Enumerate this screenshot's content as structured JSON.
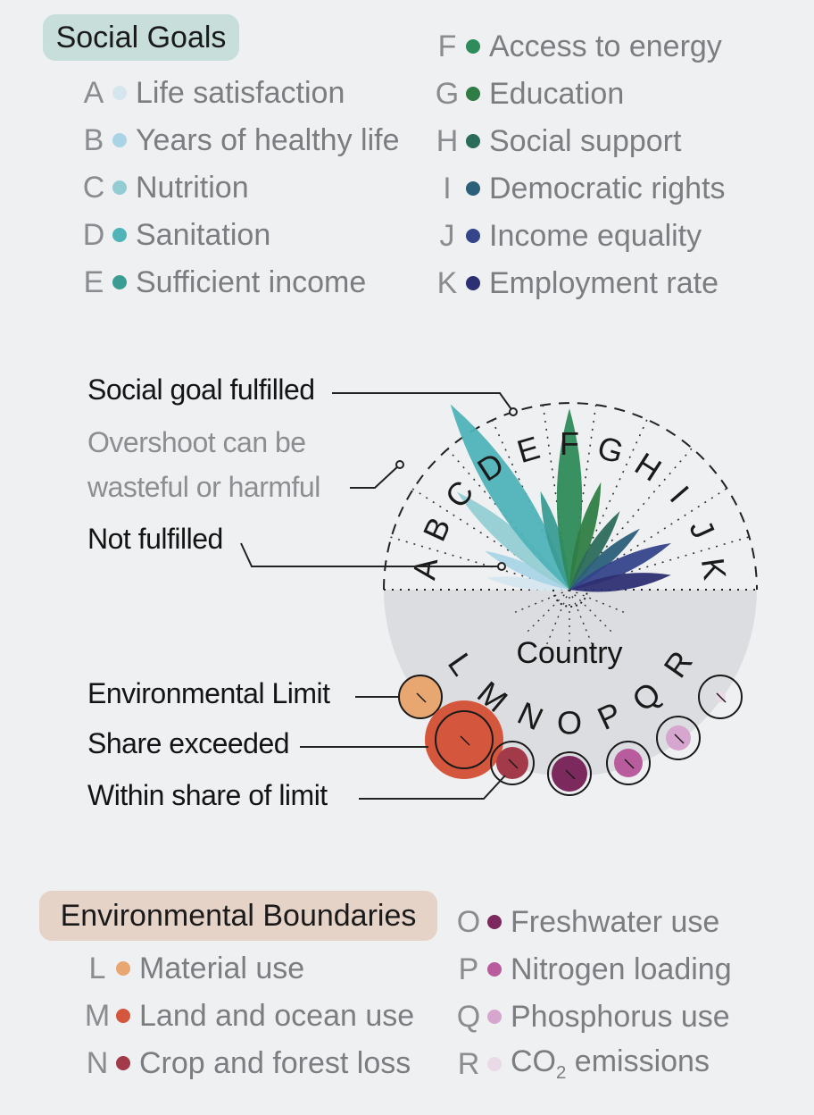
{
  "social": {
    "title": "Social Goals",
    "items": [
      {
        "key": "A",
        "label": "Life satisfaction",
        "color": "#d5e6ef"
      },
      {
        "key": "B",
        "label": "Years of healthy life",
        "color": "#a9d4e6"
      },
      {
        "key": "C",
        "label": "Nutrition",
        "color": "#93cdd3"
      },
      {
        "key": "D",
        "label": "Sanitation",
        "color": "#4fb3b8"
      },
      {
        "key": "E",
        "label": "Sufficient income",
        "color": "#3a9c93"
      },
      {
        "key": "F",
        "label": "Access to energy",
        "color": "#2e8b5a"
      },
      {
        "key": "G",
        "label": "Education",
        "color": "#2f7d44"
      },
      {
        "key": "H",
        "label": "Social support",
        "color": "#2b6b5a"
      },
      {
        "key": "I",
        "label": "Democratic rights",
        "color": "#2b5f7a"
      },
      {
        "key": "J",
        "label": "Income equality",
        "color": "#34458a"
      },
      {
        "key": "K",
        "label": "Employment rate",
        "color": "#2d2f73"
      }
    ]
  },
  "environmental": {
    "title": "Environmental Boundaries",
    "items": [
      {
        "key": "L",
        "label": "Material use",
        "color": "#e8a670"
      },
      {
        "key": "M",
        "label": "Land and ocean use",
        "color": "#d4573d"
      },
      {
        "key": "N",
        "label": "Crop and forest loss",
        "color": "#a33a4a"
      },
      {
        "key": "O",
        "label": "Freshwater use",
        "color": "#7c2a5d"
      },
      {
        "key": "P",
        "label": "Nitrogen loading",
        "color": "#b95c9d"
      },
      {
        "key": "Q",
        "label": "Phosphorus use",
        "color": "#d6a6cf"
      },
      {
        "key": "R",
        "label": "CO2 emissions",
        "color": "#ead9e6"
      }
    ]
  },
  "annotations": {
    "social_fulfilled": "Social goal fulfilled",
    "overshoot": "Overshoot can be wasteful or harmful",
    "not_fulfilled": "Not fulfilled",
    "environmental_limit": "Environmental Limit",
    "share_exceeded": "Share exceeded",
    "within_share": "Within share of limit",
    "country": "Country"
  }
}
